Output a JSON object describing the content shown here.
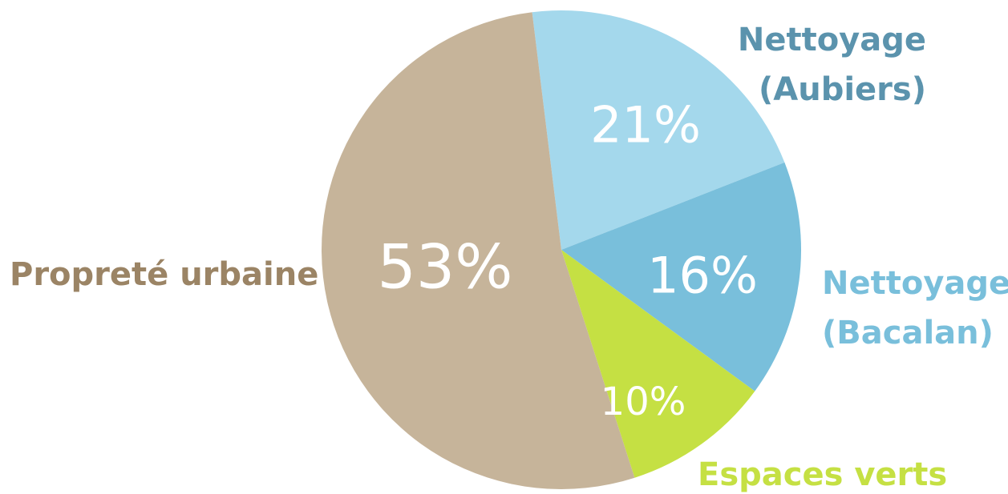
{
  "chart_data": {
    "type": "pie",
    "title": "",
    "start_angle_deg": 353,
    "direction": "clockwise",
    "legend": "none",
    "slices": [
      {
        "label_lines": [
          "Nettoyage",
          "(Aubiers)"
        ],
        "value": 21,
        "value_label": "21%",
        "color": "#a4d8ec",
        "label_color": "#5b93ad"
      },
      {
        "label_lines": [
          "Nettoyage",
          "(Bacalan)"
        ],
        "value": 16,
        "value_label": "16%",
        "color": "#79bfdb",
        "label_color": "#79bfdb"
      },
      {
        "label_lines": [
          "Espaces verts"
        ],
        "value": 10,
        "value_label": "10%",
        "color": "#c5e043",
        "label_color": "#c5e043"
      },
      {
        "label_lines": [
          "Propreté urbaine"
        ],
        "value": 53,
        "value_label": "53%",
        "color": "#c6b49a",
        "label_color": "#9b8465"
      }
    ]
  }
}
